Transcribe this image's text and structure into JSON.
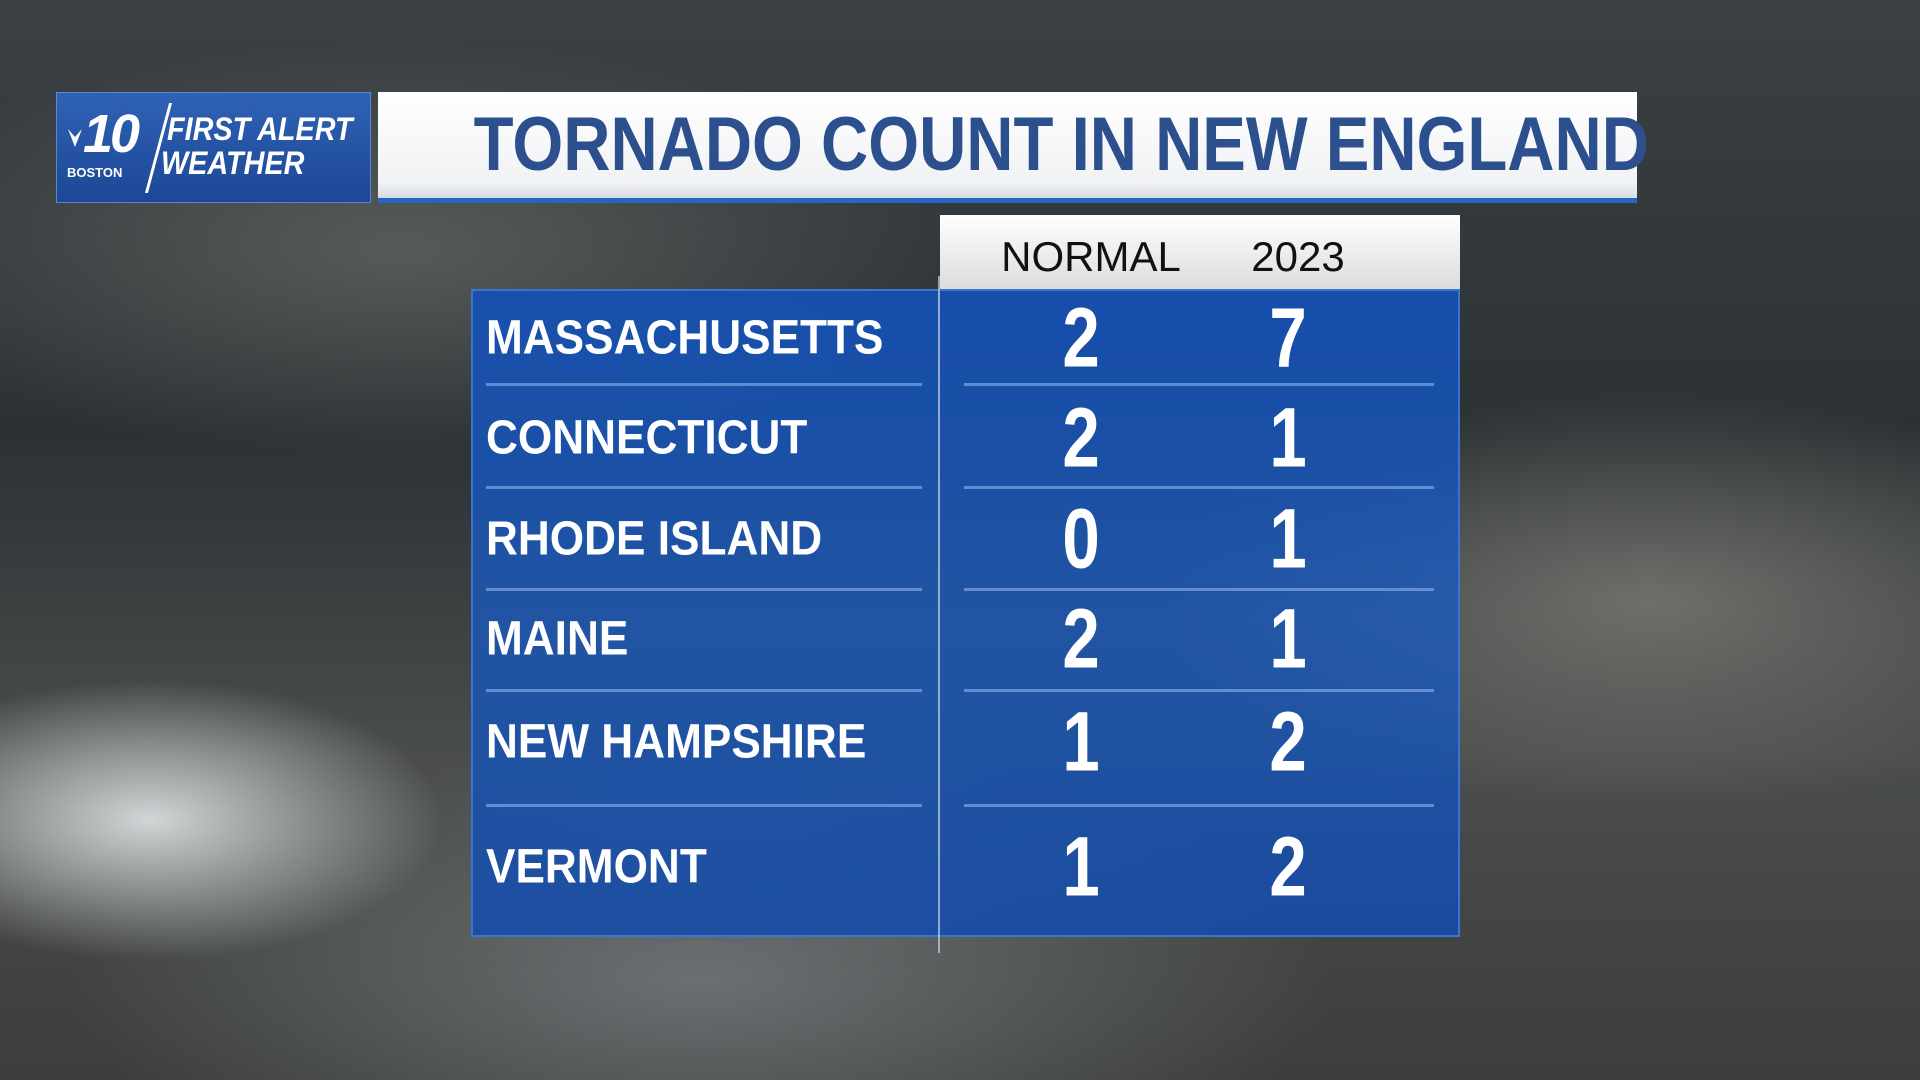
{
  "logo": {
    "channel": "10",
    "station": "BOSTON",
    "brand_line1": "FIRST ALERT",
    "brand_line2": "WEATHER"
  },
  "title": "TORNADO COUNT IN NEW ENGLAND",
  "table": {
    "columns": [
      "NORMAL",
      "2023"
    ],
    "rows": [
      [
        "MASSACHUSETTS",
        2,
        7
      ],
      [
        "CONNECTICUT",
        2,
        1
      ],
      [
        "RHODE ISLAND",
        0,
        1
      ],
      [
        "MAINE",
        2,
        1
      ],
      [
        "NEW HAMPSHIRE",
        1,
        2
      ],
      [
        "VERMONT",
        1,
        2
      ]
    ]
  }
}
